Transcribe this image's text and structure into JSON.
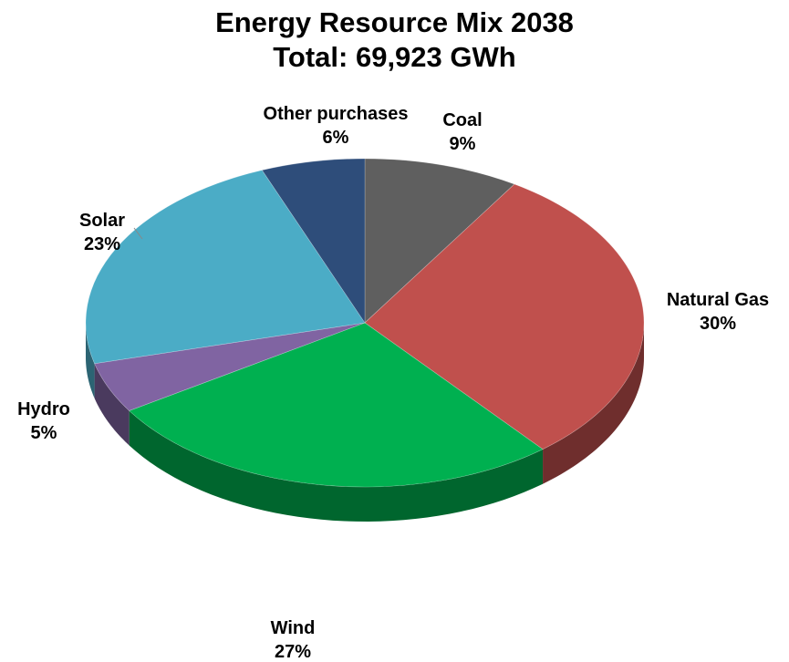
{
  "chart_data": {
    "type": "pie",
    "title": "Energy Resource Mix 2038",
    "subtitle": "Total: 69,923 GWh",
    "start_angle_deg": 0,
    "direction": "clockwise",
    "style": "3d",
    "slices": [
      {
        "name": "Coal",
        "value": 9,
        "label": "9%",
        "color": "#5f5f5f"
      },
      {
        "name": "Natural Gas",
        "value": 30,
        "label": "30%",
        "color": "#c0504d"
      },
      {
        "name": "Wind",
        "value": 27,
        "label": "27%",
        "color": "#00b050"
      },
      {
        "name": "Hydro",
        "value": 5,
        "label": "5%",
        "color": "#8064a2"
      },
      {
        "name": "Solar",
        "value": 23,
        "label": "23%",
        "color": "#4bacc6"
      },
      {
        "name": "Other purchases",
        "value": 6,
        "label": "6%",
        "color": "#2e4d7a"
      }
    ]
  }
}
